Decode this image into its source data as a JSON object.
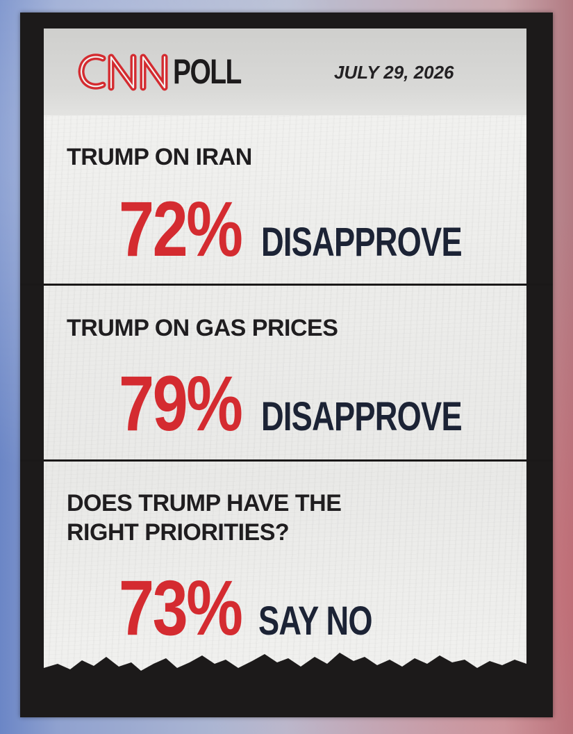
{
  "header": {
    "brand": "CNN",
    "label": "POLL",
    "date": "JULY 29, 2026"
  },
  "sections": [
    {
      "question": "TRUMP ON IRAN",
      "percent": "72%",
      "answer": "DISAPPROVE"
    },
    {
      "question": "TRUMP ON GAS PRICES",
      "percent": "79%",
      "answer": "DISAPPROVE"
    },
    {
      "question_lines": [
        "DOES TRUMP HAVE THE",
        "RIGHT PRIORITIES?"
      ],
      "percent": "73%",
      "answer": "SAY NO"
    }
  ],
  "colors": {
    "brand_red": "#d42b30",
    "navy_text": "#1c2335",
    "frame": "#1c1a1a",
    "paper": "#ececea"
  }
}
